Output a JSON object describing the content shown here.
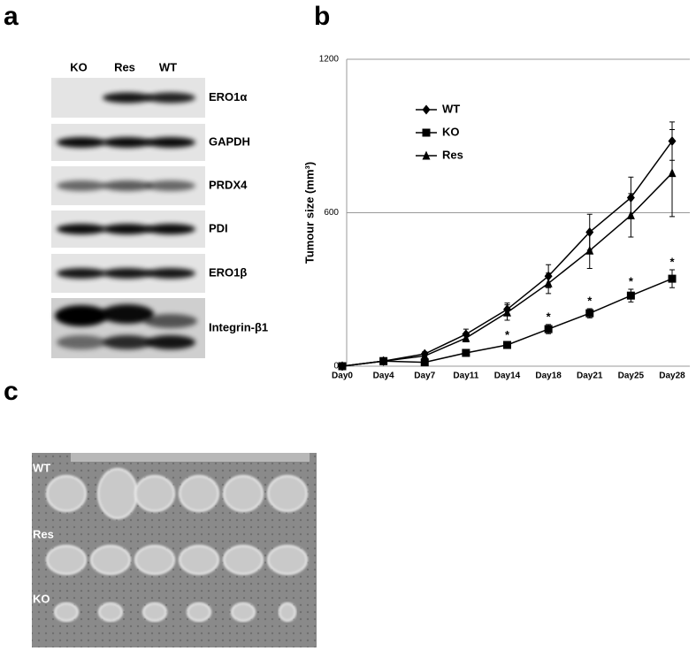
{
  "panels": [
    "a",
    "b",
    "c"
  ],
  "blot": {
    "lanes": [
      "KO",
      "Res",
      "WT"
    ],
    "proteins": [
      "ERO1α",
      "GAPDH",
      "PRDX4",
      "PDI",
      "ERO1β",
      "Integrin-β1"
    ]
  },
  "photo": {
    "rows": [
      "WT",
      "Res",
      "KO"
    ]
  },
  "chart_data": {
    "type": "line",
    "y_label": "Tumour size (mm³)",
    "categories": [
      "Day0",
      "Day4",
      "Day7",
      "Day11",
      "Day14",
      "Day18",
      "Day21",
      "Day25",
      "Day28"
    ],
    "series": [
      {
        "name": "WT",
        "color": "#000000",
        "marker": "diamond",
        "values": [
          0,
          20,
          48,
          125,
          222,
          352,
          524,
          659,
          880
        ],
        "errors": [
          0,
          5,
          8,
          20,
          25,
          45,
          70,
          80,
          75
        ]
      },
      {
        "name": "KO",
        "color": "#000000",
        "marker": "square",
        "values": [
          0,
          20,
          15,
          52,
          83,
          145,
          207,
          276,
          342
        ],
        "errors": [
          0,
          3,
          5,
          5,
          8,
          18,
          18,
          25,
          35
        ]
      },
      {
        "name": "Res",
        "color": "#000000",
        "marker": "triangle",
        "values": [
          0,
          20,
          40,
          110,
          210,
          324,
          452,
          590,
          755
        ],
        "errors": [
          0,
          5,
          8,
          15,
          30,
          40,
          70,
          85,
          170
        ]
      }
    ],
    "annotations": [
      {
        "text": "*",
        "x": "Day14"
      },
      {
        "text": "*",
        "x": "Day18"
      },
      {
        "text": "*",
        "x": "Day21"
      },
      {
        "text": "*",
        "x": "Day25"
      },
      {
        "text": "*",
        "x": "Day28"
      }
    ],
    "ylim": [
      0,
      1200
    ],
    "yticks": [
      0,
      600,
      1200
    ],
    "grid": true,
    "legend": "top-left"
  }
}
